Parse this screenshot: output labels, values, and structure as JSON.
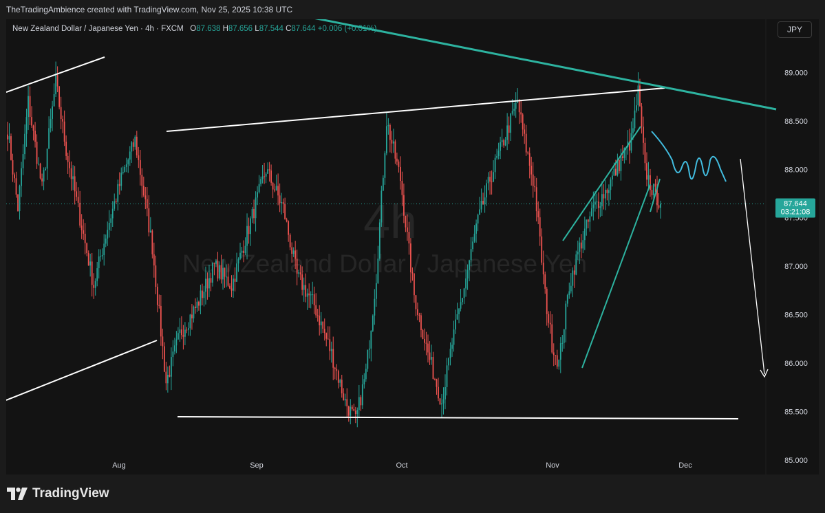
{
  "header": {
    "attribution": "TheTradingAmbience created with TradingView.com, Nov 25, 2025 10:38 UTC"
  },
  "legend": {
    "symbol": "New Zealand Dollar / Japanese Yen · 4h · FXCM",
    "o_label": "O",
    "o_value": "87.638",
    "h_label": "H",
    "h_value": "87.656",
    "l_label": "L",
    "l_value": "87.544",
    "c_label": "C",
    "c_value": "87.644",
    "change": "+0.006 (+0.01%)"
  },
  "currency_button": "JPY",
  "watermark": {
    "interval": "4h",
    "name": "New Zealand Dollar / Japanese Yen"
  },
  "price_tag": {
    "price": "87.644",
    "countdown": "03:21:08"
  },
  "footer": {
    "brand": "TradingView"
  },
  "colors": {
    "up": "#26a69a",
    "down": "#ef5350",
    "trendline_teal": "#2db3a0",
    "projection_blue": "#42bde0",
    "price_tag_bg": "#26a69a"
  },
  "chart_data": {
    "type": "candlestick",
    "symbol": "NZDJPY",
    "interval": "4h",
    "x_ticks": [
      "Aug",
      "Sep",
      "Oct",
      "Nov",
      "Dec"
    ],
    "y_ticks": [
      "89.000",
      "88.500",
      "88.000",
      "87.500",
      "87.000",
      "86.500",
      "86.000",
      "85.500",
      "85.000"
    ],
    "ylim": [
      84.85,
      89.55
    ],
    "last_price": 87.644,
    "anchors": [
      [
        0,
        88.4
      ],
      [
        6,
        87.6
      ],
      [
        12,
        88.7
      ],
      [
        20,
        87.8
      ],
      [
        28,
        88.9
      ],
      [
        34,
        88.2
      ],
      [
        42,
        87.5
      ],
      [
        50,
        86.8
      ],
      [
        58,
        87.4
      ],
      [
        66,
        87.9
      ],
      [
        74,
        88.3
      ],
      [
        84,
        87.2
      ],
      [
        92,
        85.8
      ],
      [
        100,
        86.3
      ],
      [
        110,
        86.6
      ],
      [
        120,
        87.0
      ],
      [
        130,
        86.8
      ],
      [
        140,
        87.4
      ],
      [
        150,
        88.0
      ],
      [
        160,
        87.6
      ],
      [
        168,
        86.9
      ],
      [
        178,
        86.6
      ],
      [
        188,
        86.1
      ],
      [
        196,
        85.6
      ],
      [
        202,
        85.4
      ],
      [
        208,
        85.9
      ],
      [
        214,
        86.9
      ],
      [
        220,
        88.5
      ],
      [
        228,
        87.9
      ],
      [
        236,
        86.7
      ],
      [
        244,
        86.1
      ],
      [
        252,
        85.6
      ],
      [
        258,
        86.2
      ],
      [
        264,
        86.7
      ],
      [
        272,
        87.4
      ],
      [
        280,
        87.9
      ],
      [
        288,
        88.3
      ],
      [
        296,
        88.7
      ],
      [
        300,
        88.3
      ],
      [
        306,
        87.8
      ],
      [
        312,
        86.7
      ],
      [
        316,
        86.2
      ],
      [
        320,
        86.0
      ],
      [
        326,
        86.8
      ],
      [
        332,
        87.2
      ],
      [
        340,
        87.6
      ],
      [
        348,
        87.8
      ],
      [
        356,
        88.1
      ],
      [
        362,
        88.3
      ],
      [
        366,
        88.8
      ],
      [
        370,
        88.0
      ],
      [
        374,
        87.8
      ],
      [
        379,
        87.65
      ]
    ]
  }
}
